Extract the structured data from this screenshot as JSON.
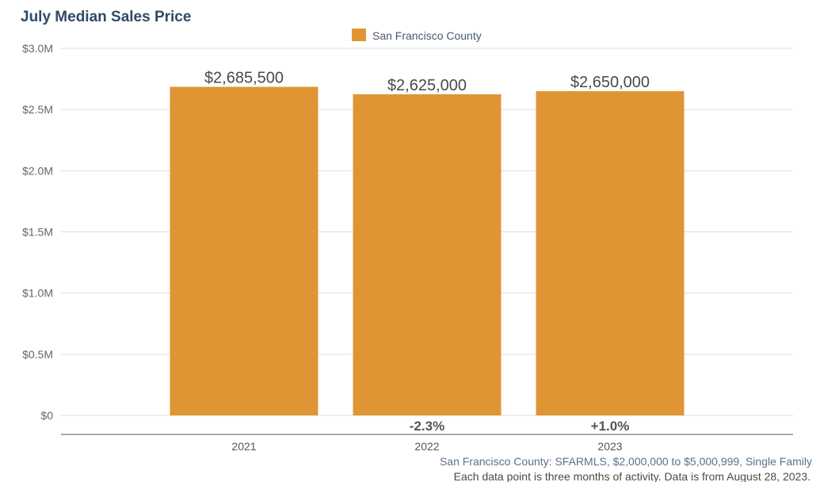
{
  "colors": {
    "bar": "#e09535",
    "title": "#2f4a68",
    "gridline": "#dddddd"
  },
  "chart_data": {
    "type": "bar",
    "title": "July Median Sales Price",
    "legend": "San Francisco County",
    "categories": [
      "2021",
      "2022",
      "2023"
    ],
    "values": [
      2685500,
      2625000,
      2650000
    ],
    "data_labels": [
      "$2,685,500",
      "$2,625,000",
      "$2,650,000"
    ],
    "change_labels": [
      "",
      "-2.3%",
      "+1.0%"
    ],
    "y_ticks": [
      0,
      500000,
      1000000,
      1500000,
      2000000,
      2500000,
      3000000
    ],
    "y_tick_labels": [
      "$0",
      "$0.5M",
      "$1.0M",
      "$1.5M",
      "$2.0M",
      "$2.5M",
      "$3.0M"
    ],
    "ylim": [
      0,
      3000000
    ],
    "xlabel": "",
    "ylabel": "",
    "grid": true,
    "legend_position": "top-center"
  },
  "footnote": {
    "source": "San Francisco County: SFARMLS, $2,000,000 to $5,000,999, Single Family",
    "note": "Each data point is three months of activity. Data is from August 28, 2023."
  }
}
